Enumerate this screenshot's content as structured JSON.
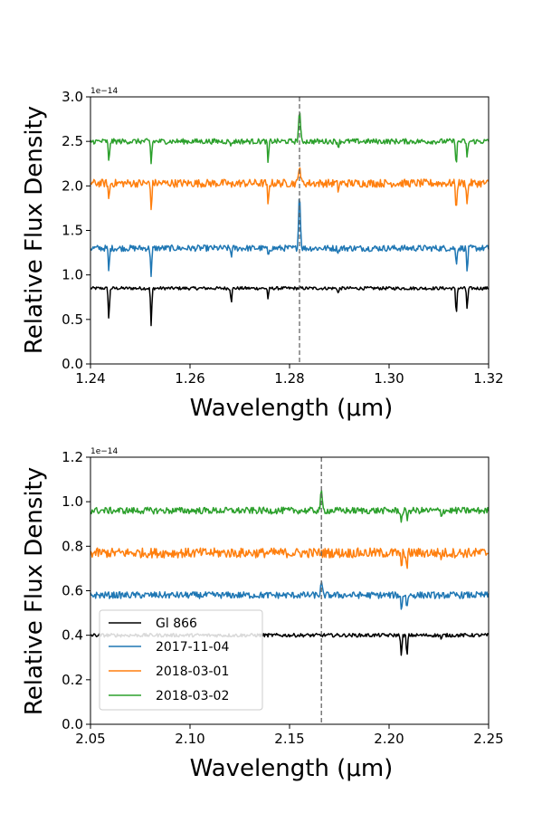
{
  "chart_data": [
    {
      "type": "line",
      "xlabel": "Wavelength (μm)",
      "ylabel": "Relative Flux Density",
      "y_multiplier": "1e−14",
      "xlim": [
        1.24,
        1.32
      ],
      "ylim": [
        0.0,
        3.0
      ],
      "xticks": [
        "1.24",
        "1.26",
        "1.28",
        "1.30",
        "1.32"
      ],
      "yticks": [
        "0.0",
        "0.5",
        "1.0",
        "1.5",
        "2.0",
        "2.5",
        "3.0"
      ],
      "grid": false,
      "vline": 1.282,
      "series": [
        {
          "name": "Gl 866",
          "color": "#000000",
          "base": 0.85,
          "peak": 0.0,
          "noise": 0.018,
          "lines": [
            [
              1.2437,
              0.36
            ],
            [
              1.2522,
              0.43
            ],
            [
              1.2683,
              0.15
            ],
            [
              1.2757,
              0.12
            ],
            [
              1.2898,
              0.06
            ],
            [
              1.3135,
              0.3
            ],
            [
              1.3157,
              0.24
            ]
          ]
        },
        {
          "name": "2017-11-04",
          "color": "#1f77b4",
          "base": 1.3,
          "peak": 0.62,
          "noise": 0.035,
          "lines": [
            [
              1.2437,
              0.27
            ],
            [
              1.2522,
              0.33
            ],
            [
              1.2683,
              0.08
            ],
            [
              1.2757,
              0.1
            ],
            [
              1.2898,
              0.05
            ],
            [
              1.3135,
              0.18
            ],
            [
              1.3157,
              0.27
            ]
          ]
        },
        {
          "name": "2018-03-01",
          "color": "#ff7f0e",
          "base": 2.03,
          "peak": 0.22,
          "noise": 0.045,
          "lines": [
            [
              1.2437,
              0.2
            ],
            [
              1.2522,
              0.3
            ],
            [
              1.2683,
              0.05
            ],
            [
              1.2757,
              0.28
            ],
            [
              1.2898,
              0.08
            ],
            [
              1.3135,
              0.32
            ],
            [
              1.3157,
              0.26
            ]
          ]
        },
        {
          "name": "2018-03-02",
          "color": "#2ca02c",
          "base": 2.5,
          "peak": 0.35,
          "noise": 0.03,
          "lines": [
            [
              1.2437,
              0.25
            ],
            [
              1.2522,
              0.25
            ],
            [
              1.2683,
              0.05
            ],
            [
              1.2757,
              0.25
            ],
            [
              1.2898,
              0.06
            ],
            [
              1.3135,
              0.27
            ],
            [
              1.3157,
              0.2
            ]
          ]
        }
      ]
    },
    {
      "type": "line",
      "xlabel": "Wavelength (μm)",
      "ylabel": "Relative Flux Density",
      "y_multiplier": "1e−14",
      "xlim": [
        2.05,
        2.25
      ],
      "ylim": [
        0.0,
        1.2
      ],
      "xticks": [
        "2.05",
        "2.10",
        "2.15",
        "2.20",
        "2.25"
      ],
      "yticks": [
        "0.0",
        "0.2",
        "0.4",
        "0.6",
        "0.8",
        "1.0",
        "1.2"
      ],
      "grid": false,
      "vline": 2.166,
      "legend_position": "bottom-left",
      "series": [
        {
          "name": "Gl 866",
          "color": "#000000",
          "base": 0.4,
          "peak": 0.0,
          "noise": 0.008,
          "lines": [
            [
              2.2062,
              0.1
            ],
            [
              2.209,
              0.1
            ],
            [
              2.2263,
              0.02
            ]
          ]
        },
        {
          "name": "2017-11-04",
          "color": "#1f77b4",
          "base": 0.58,
          "peak": 0.05,
          "noise": 0.015,
          "lines": [
            [
              2.2062,
              0.07
            ],
            [
              2.209,
              0.06
            ],
            [
              2.2263,
              0.02
            ]
          ]
        },
        {
          "name": "2018-03-01",
          "color": "#ff7f0e",
          "base": 0.77,
          "peak": 0.0,
          "noise": 0.022,
          "lines": [
            [
              2.2062,
              0.08
            ],
            [
              2.209,
              0.08
            ],
            [
              2.2263,
              0.02
            ]
          ]
        },
        {
          "name": "2018-03-02",
          "color": "#2ca02c",
          "base": 0.96,
          "peak": 0.08,
          "noise": 0.015,
          "lines": [
            [
              2.2062,
              0.06
            ],
            [
              2.209,
              0.04
            ],
            [
              2.2263,
              0.02
            ]
          ]
        }
      ]
    }
  ]
}
